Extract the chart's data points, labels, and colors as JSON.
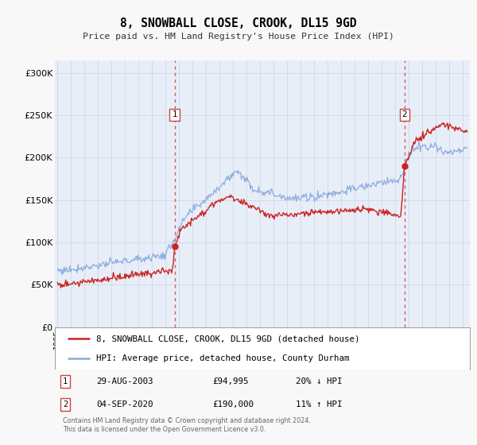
{
  "title": "8, SNOWBALL CLOSE, CROOK, DL15 9GD",
  "subtitle": "Price paid vs. HM Land Registry's House Price Index (HPI)",
  "background_color": "#f8f8f8",
  "plot_bg_color": "#e8eef8",
  "hpi_color": "#88aadd",
  "price_color": "#cc2222",
  "marker_color": "#cc2222",
  "vline_color": "#cc4444",
  "yticks": [
    0,
    50000,
    100000,
    150000,
    200000,
    250000,
    300000
  ],
  "ytick_labels": [
    "£0",
    "£50K",
    "£100K",
    "£150K",
    "£200K",
    "£250K",
    "£300K"
  ],
  "xlim_start": 1994.8,
  "xlim_end": 2025.5,
  "ylim_min": 0,
  "ylim_max": 315000,
  "event1_x": 2003.66,
  "event1_y_price": 94995,
  "event2_x": 2020.67,
  "event2_y_price": 190000,
  "legend_line1": "8, SNOWBALL CLOSE, CROOK, DL15 9GD (detached house)",
  "legend_line2": "HPI: Average price, detached house, County Durham",
  "event1_date": "29-AUG-2003",
  "event1_price": "£94,995",
  "event1_hpi": "20% ↓ HPI",
  "event2_date": "04-SEP-2020",
  "event2_price": "£190,000",
  "event2_hpi": "11% ↑ HPI",
  "footer1": "Contains HM Land Registry data © Crown copyright and database right 2024.",
  "footer2": "This data is licensed under the Open Government Licence v3.0."
}
